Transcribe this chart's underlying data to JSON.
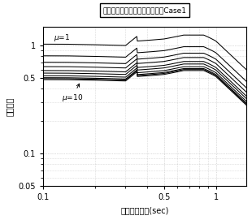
{
  "title": "近鉄・京都線（東寺～笹田）　Case1",
  "xlabel": "等価固有周期(sec)",
  "ylabel": "降伏震度",
  "xlim": [
    0.1,
    1.5
  ],
  "ylim": [
    0.05,
    1.5
  ],
  "mu_label_1": "$\\mu$=1",
  "mu_label_10": "$\\mu$=10",
  "n_curves": 10,
  "background_color": "#ffffff",
  "curve_color": "#000000",
  "grid_color": "#bbbbbb"
}
